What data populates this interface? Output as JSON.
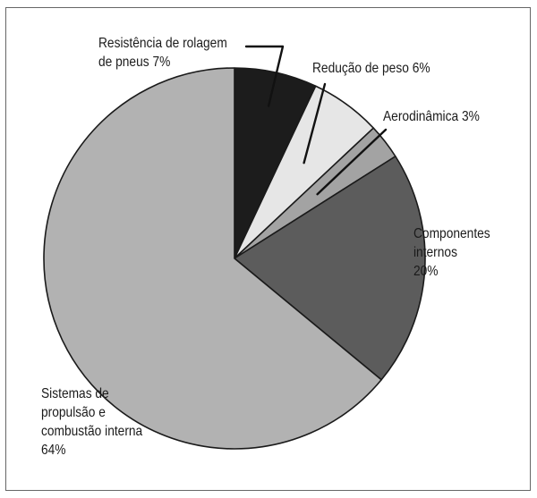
{
  "chart_data": {
    "type": "pie",
    "title": "",
    "slices": [
      {
        "line1": "Resistência de rolagem",
        "line2": "de pneus 7%",
        "line3": "",
        "line4": "",
        "value": 7,
        "color": "#1c1c1c"
      },
      {
        "line1": "Redução de peso 6%",
        "line2": "",
        "line3": "",
        "line4": "",
        "value": 6,
        "color": "#e6e6e6"
      },
      {
        "line1": "Aerodinâmica 3%",
        "line2": "",
        "line3": "",
        "line4": "",
        "value": 3,
        "color": "#a3a3a3"
      },
      {
        "line1": "Componentes",
        "line2": "internos",
        "line3": "20%",
        "line4": "",
        "value": 20,
        "color": "#5c5c5c"
      },
      {
        "line1": "Sistemas de",
        "line2": "propulsão e",
        "line3": "combustão interna",
        "line4": "64%",
        "value": 64,
        "color": "#b2b2b2"
      }
    ],
    "start_angle_deg": 0,
    "direction": "clockwise"
  }
}
